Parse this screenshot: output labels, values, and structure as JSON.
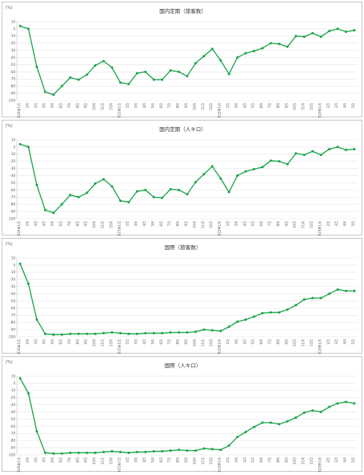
{
  "x_labels": [
    "2020年1月",
    "2月",
    "3月",
    "4月",
    "5月",
    "6月",
    "7月",
    "8月",
    "9月",
    "10月",
    "11月",
    "12月",
    "2021年1月",
    "2月",
    "3月",
    "4月",
    "5月",
    "6月",
    "7月",
    "8月",
    "9月",
    "10月",
    "11月",
    "12月",
    "2022年1月",
    "2月",
    "3月",
    "4月",
    "5月",
    "6月",
    "7月",
    "8月",
    "9月",
    "10月",
    "11月",
    "12月",
    "2023年1月",
    "2月",
    "3月",
    "4月",
    "5月"
  ],
  "chart_data": [
    {
      "type": "line",
      "title": "国内定期（旅客数）",
      "unit": "(%)",
      "ylim": [
        -100,
        10
      ],
      "yticks": [
        10,
        0,
        -10,
        -20,
        -30,
        -40,
        -50,
        -60,
        -70,
        -80,
        -90,
        -100
      ],
      "series": [
        {
          "values": [
            4,
            0,
            -53,
            -88,
            -92,
            -80,
            -68,
            -71,
            -64,
            -51,
            -45,
            -54,
            -75,
            -77,
            -62,
            -60,
            -71,
            -71,
            -58,
            -60,
            -66,
            -48,
            -38,
            -28,
            -44,
            -63,
            -40,
            -34,
            -31,
            -27,
            -20,
            -21,
            -25,
            -10,
            -11,
            -6,
            -11,
            -3,
            0,
            -4,
            -2
          ]
        }
      ]
    },
    {
      "type": "line",
      "title": "国内定期（人キロ）",
      "unit": "(%)",
      "ylim": [
        -100,
        10
      ],
      "yticks": [
        10,
        0,
        -10,
        -20,
        -30,
        -40,
        -50,
        -60,
        -70,
        -80,
        -90,
        -100
      ],
      "series": [
        {
          "values": [
            4,
            0,
            -53,
            -88,
            -92,
            -80,
            -67,
            -70,
            -64,
            -51,
            -45,
            -55,
            -75,
            -77,
            -62,
            -60,
            -70,
            -71,
            -59,
            -60,
            -66,
            -49,
            -38,
            -27,
            -44,
            -63,
            -40,
            -34,
            -31,
            -28,
            -19,
            -20,
            -24,
            -9,
            -11,
            -6,
            -11,
            -3,
            0,
            -4,
            -3
          ]
        }
      ]
    },
    {
      "type": "line",
      "title": "国際（旅客数）",
      "unit": "(%)",
      "ylim": [
        -100,
        10
      ],
      "yticks": [
        10,
        0,
        -10,
        -20,
        -30,
        -40,
        -50,
        -60,
        -70,
        -80,
        -90,
        -100
      ],
      "series": [
        {
          "values": [
            2,
            -26,
            -76,
            -96,
            -97,
            -97,
            -96,
            -96,
            -96,
            -96,
            -95,
            -94,
            -95,
            -96,
            -96,
            -95,
            -95,
            -95,
            -94,
            -94,
            -94,
            -93,
            -90,
            -91,
            -92,
            -86,
            -79,
            -76,
            -72,
            -67,
            -66,
            -66,
            -62,
            -56,
            -48,
            -46,
            -46,
            -40,
            -34,
            -36,
            -36
          ]
        }
      ]
    },
    {
      "type": "line",
      "title": "国際（人キロ）",
      "unit": "(%)",
      "ylim": [
        -100,
        10
      ],
      "yticks": [
        10,
        0,
        -10,
        -20,
        -30,
        -40,
        -50,
        -60,
        -70,
        -80,
        -90,
        -100
      ],
      "series": [
        {
          "values": [
            7,
            -14,
            -67,
            -97,
            -98,
            -98,
            -97,
            -97,
            -97,
            -97,
            -96,
            -95,
            -96,
            -97,
            -96,
            -96,
            -95,
            -95,
            -94,
            -93,
            -94,
            -94,
            -91,
            -92,
            -93,
            -87,
            -75,
            -68,
            -61,
            -55,
            -55,
            -57,
            -53,
            -48,
            -41,
            -38,
            -40,
            -33,
            -28,
            -26,
            -28
          ]
        }
      ]
    }
  ]
}
